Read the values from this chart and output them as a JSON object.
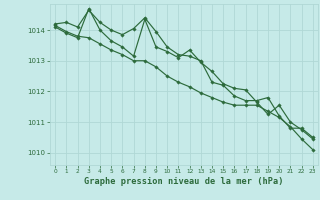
{
  "title": "Graphe pression niveau de la mer (hPa)",
  "background_color": "#c6eae8",
  "grid_color": "#b0d8d5",
  "line_color": "#2d6b3c",
  "xlim": [
    -0.5,
    23.5
  ],
  "ylim": [
    1009.6,
    1014.85
  ],
  "yticks": [
    1010,
    1011,
    1012,
    1013,
    1014
  ],
  "xticks": [
    0,
    1,
    2,
    3,
    4,
    5,
    6,
    7,
    8,
    9,
    10,
    11,
    12,
    13,
    14,
    15,
    16,
    17,
    18,
    19,
    20,
    21,
    22,
    23
  ],
  "series": [
    [
      1014.2,
      1014.25,
      1014.1,
      1014.65,
      1014.25,
      1014.0,
      1013.85,
      1014.05,
      1014.4,
      1013.95,
      1013.45,
      1013.2,
      1013.15,
      1013.0,
      1012.3,
      1012.2,
      1011.85,
      1011.7,
      1011.7,
      1011.8,
      1011.2,
      1010.8,
      1010.8,
      1010.5
    ],
    [
      1014.1,
      1013.9,
      1013.75,
      1014.7,
      1014.0,
      1013.65,
      1013.45,
      1013.15,
      1014.35,
      1013.45,
      1013.3,
      1013.1,
      1013.35,
      1012.95,
      1012.65,
      1012.25,
      1012.1,
      1012.05,
      1011.65,
      1011.25,
      1011.55,
      1011.0,
      1010.75,
      1010.45
    ],
    [
      1014.15,
      1013.95,
      1013.8,
      1013.75,
      1013.55,
      1013.35,
      1013.2,
      1013.0,
      1013.0,
      1012.8,
      1012.5,
      1012.3,
      1012.15,
      1011.95,
      1011.8,
      1011.65,
      1011.55,
      1011.55,
      1011.55,
      1011.35,
      1011.15,
      1010.85,
      1010.45,
      1010.1
    ]
  ]
}
